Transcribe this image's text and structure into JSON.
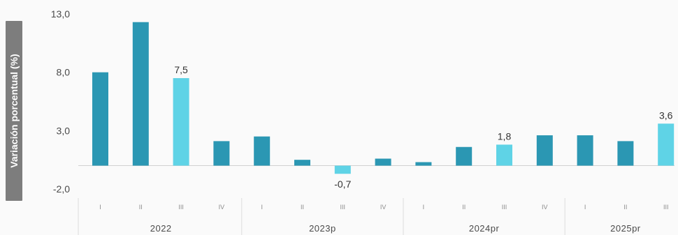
{
  "chart_data": {
    "type": "bar",
    "ylabel": "Variación porcentual (%)",
    "ylim": [
      -2.0,
      13.0
    ],
    "yticks": [
      "13,0",
      "8,0",
      "3,0",
      "-2,0"
    ],
    "ytick_values": [
      13.0,
      8.0,
      3.0,
      -2.0
    ],
    "grid": false,
    "categories": [
      "I",
      "II",
      "III",
      "IV",
      "I",
      "II",
      "III",
      "IV",
      "I",
      "II",
      "III",
      "IV",
      "I",
      "II",
      "III"
    ],
    "years": [
      {
        "label": "2022",
        "quarters": 4
      },
      {
        "label": "2023p",
        "quarters": 4
      },
      {
        "label": "2024pr",
        "quarters": 4
      },
      {
        "label": "2025pr",
        "quarters": 3
      }
    ],
    "values": [
      8.0,
      12.3,
      7.5,
      2.1,
      2.5,
      0.5,
      -0.7,
      0.6,
      0.3,
      1.6,
      1.8,
      2.6,
      2.6,
      2.1,
      3.6
    ],
    "highlighted": [
      false,
      false,
      true,
      false,
      false,
      false,
      true,
      false,
      false,
      false,
      true,
      false,
      false,
      false,
      true
    ],
    "data_labels": [
      "",
      "",
      "7,5",
      "",
      "",
      "",
      "-0,7",
      "",
      "",
      "",
      "1,8",
      "",
      "",
      "",
      "3,6"
    ],
    "colors": {
      "normal": "#2b97b3",
      "highlight": "#5fd3e6",
      "baseline": "#d0d0d0",
      "separator": "#dcdcdc"
    }
  }
}
